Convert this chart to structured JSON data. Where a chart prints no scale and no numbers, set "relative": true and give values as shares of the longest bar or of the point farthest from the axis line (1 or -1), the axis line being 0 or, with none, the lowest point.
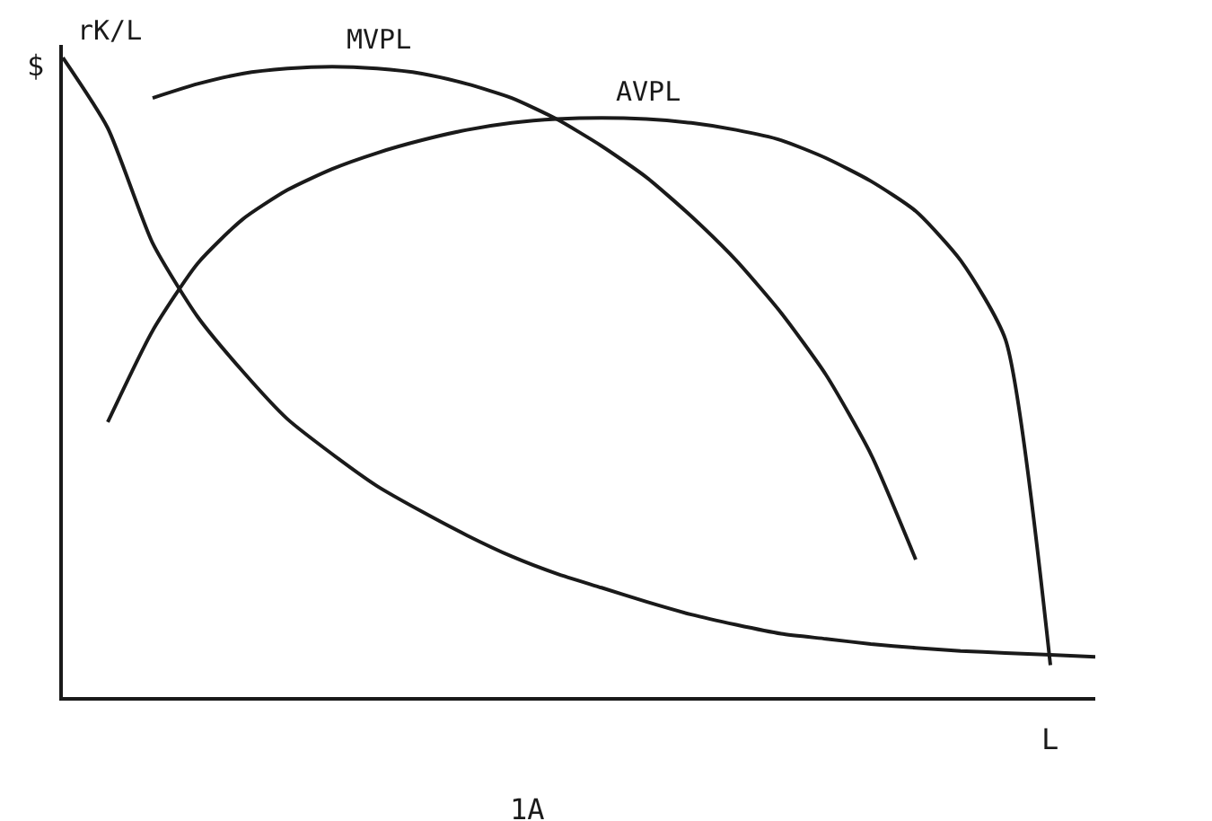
{
  "chart_data": {
    "type": "line",
    "relative": true,
    "ylabel": "$",
    "xlabel": "L",
    "annotations": [
      "1A"
    ],
    "legend": false,
    "marker": "none",
    "line_style": "solid",
    "categories": [
      null,
      null,
      null,
      null,
      null,
      null,
      null,
      null,
      null,
      null,
      null,
      null,
      null,
      null,
      null,
      null,
      null,
      null,
      null,
      null,
      null,
      null,
      null,
      null
    ],
    "series": [
      {
        "name": "MVPL",
        "color": "#1a1a1a",
        "values": [
          null,
          null,
          0.937,
          0.959,
          0.975,
          0.983,
          0.986,
          0.983,
          0.975,
          0.959,
          0.937,
          0.904,
          0.862,
          0.813,
          0.752,
          0.683,
          0.601,
          0.504,
          0.38,
          0.215,
          null,
          null,
          null,
          null
        ]
      },
      {
        "name": "AVPL",
        "color": "#1a1a1a",
        "values": [
          null,
          0.43,
          0.573,
          0.678,
          0.747,
          0.793,
          0.826,
          0.851,
          0.871,
          0.887,
          0.898,
          0.904,
          0.906,
          0.904,
          0.898,
          0.887,
          0.871,
          0.843,
          0.807,
          0.76,
          0.683,
          0.559,
          0.05,
          null
        ]
      },
      {
        "name": "rK/L",
        "color": "#1a1a1a",
        "values": [
          1.0,
          0.89,
          0.71,
          0.595,
          0.51,
          0.435,
          0.38,
          0.33,
          0.29,
          0.253,
          0.22,
          0.193,
          0.171,
          0.149,
          0.129,
          0.113,
          0.099,
          0.091,
          0.083,
          0.077,
          0.072,
          0.069,
          0.066,
          0.063
        ]
      }
    ]
  }
}
